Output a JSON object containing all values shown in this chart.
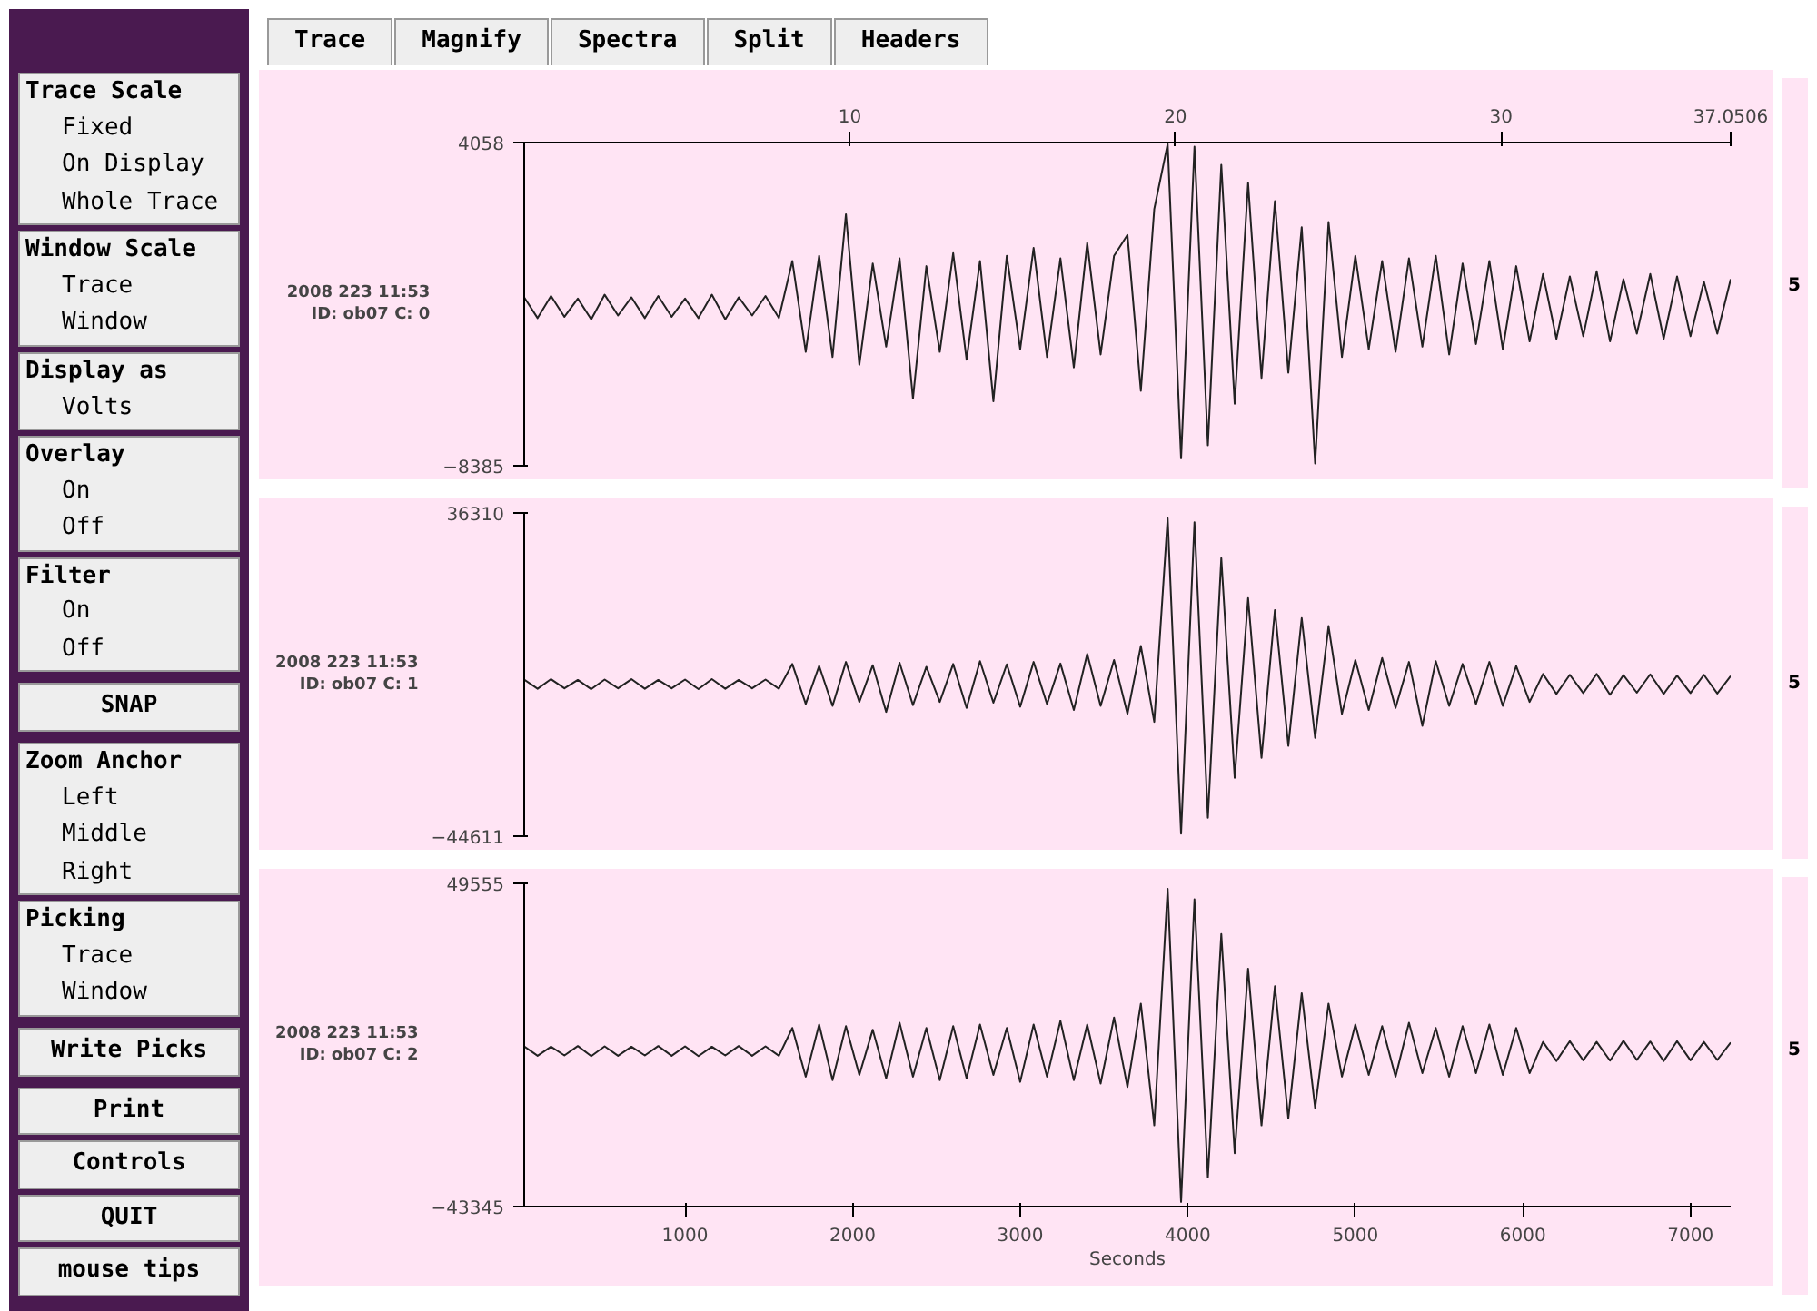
{
  "chart_data": [
    {
      "type": "other",
      "categories": [
        "Trace",
        "Magnify",
        "Spectra",
        "Split",
        "Headers"
      ]
    },
    {
      "type": "other",
      "title": "Trace Scale",
      "annotations": [
        "Fixed",
        "On Display",
        "Whole Trace"
      ]
    },
    {
      "type": "other",
      "title": "Window Scale",
      "annotations": [
        "Trace",
        "Window"
      ]
    },
    {
      "type": "other",
      "title": "Display as",
      "annotations": [
        "Volts"
      ]
    },
    {
      "type": "other",
      "title": "Overlay",
      "annotations": [
        "On",
        "Off"
      ]
    },
    {
      "type": "other",
      "title": "Filter",
      "annotations": [
        "On",
        "Off"
      ]
    },
    {
      "type": "other",
      "annotations": [
        "SNAP"
      ]
    },
    {
      "type": "other",
      "title": "Zoom Anchor",
      "annotations": [
        "Left",
        "Middle",
        "Right"
      ]
    },
    {
      "type": "other",
      "title": "Picking",
      "annotations": [
        "Trace",
        "Window"
      ]
    },
    {
      "type": "other",
      "annotations": [
        "Write Picks"
      ]
    },
    {
      "type": "other",
      "annotations": [
        "Print",
        "Controls",
        "QUIT",
        "mouse tips"
      ]
    },
    {
      "type": "line",
      "ylabel": "2008 223 11:53\nID: ob07 C: 0",
      "annotations": [
        "5"
      ],
      "xlim": [
        40,
        7240
      ],
      "ylim": [
        -8385,
        4058
      ],
      "yticks": [
        -8385,
        4058
      ],
      "x2lim": [
        0,
        37.0506
      ],
      "x2ticks": [
        10,
        20,
        30,
        {
          "value": 37.0506,
          "label": "37.0506"
        }
      ],
      "tick_labels": "y",
      "x": [
        40,
        120,
        200,
        280,
        360,
        440,
        520,
        600,
        680,
        760,
        840,
        920,
        1000,
        1080,
        1160,
        1240,
        1320,
        1400,
        1480,
        1560,
        1640,
        1720,
        1800,
        1880,
        1960,
        2040,
        2120,
        2200,
        2280,
        2360,
        2440,
        2520,
        2600,
        2680,
        2760,
        2840,
        2920,
        3000,
        3080,
        3160,
        3240,
        3320,
        3400,
        3480,
        3560,
        3640,
        3720,
        3800,
        3880,
        3960,
        4040,
        4120,
        4200,
        4280,
        4360,
        4440,
        4520,
        4600,
        4680,
        4760,
        4840,
        4920,
        5000,
        5080,
        5160,
        5240,
        5320,
        5400,
        5480,
        5560,
        5640,
        5720,
        5800,
        5880,
        5960,
        6040,
        6120,
        6200,
        6280,
        6360,
        6440,
        6520,
        6600,
        6680,
        6760,
        6840,
        6920,
        7000,
        7080,
        7160,
        7240
      ],
      "series": [
        {
          "color": "#222222",
          "values": [
            -1900,
            -2700,
            -1850,
            -2650,
            -1950,
            -2750,
            -1800,
            -2600,
            -1900,
            -2700,
            -1850,
            -2650,
            -1950,
            -2700,
            -1800,
            -2750,
            -1900,
            -2600,
            -1850,
            -2700,
            -500,
            -4000,
            -300,
            -4200,
            1300,
            -4500,
            -600,
            -3800,
            -400,
            -5800,
            -700,
            -4000,
            -200,
            -4300,
            -500,
            -5900,
            -300,
            -3900,
            0,
            -4200,
            -400,
            -4600,
            200,
            -4100,
            -300,
            500,
            -5500,
            1500,
            4000,
            -8100,
            3900,
            -7600,
            3200,
            -6000,
            2500,
            -5000,
            1800,
            -4800,
            800,
            -8300,
            1000,
            -4200,
            -300,
            -3900,
            -500,
            -4000,
            -400,
            -3800,
            -300,
            -4100,
            -600,
            -3700,
            -500,
            -3900,
            -700,
            -3600,
            -1000,
            -3500,
            -1100,
            -3400,
            -900,
            -3600,
            -1200,
            -3300,
            -1000,
            -3500,
            -1100,
            -3400,
            -1300,
            -3300,
            -1200
          ]
        }
      ]
    },
    {
      "type": "line",
      "ylabel": "2008 223 11:53\nID: ob07 C: 1",
      "annotations": [
        "5"
      ],
      "xlim": [
        40,
        7240
      ],
      "ylim": [
        -44611,
        36310
      ],
      "yticks": [
        -44611,
        36310
      ],
      "tick_labels": "y",
      "x": [
        40,
        120,
        200,
        280,
        360,
        440,
        520,
        600,
        680,
        760,
        840,
        920,
        1000,
        1080,
        1160,
        1240,
        1320,
        1400,
        1480,
        1560,
        1640,
        1720,
        1800,
        1880,
        1960,
        2040,
        2120,
        2200,
        2280,
        2360,
        2440,
        2520,
        2600,
        2680,
        2760,
        2840,
        2920,
        3000,
        3080,
        3160,
        3240,
        3320,
        3400,
        3480,
        3560,
        3640,
        3720,
        3800,
        3880,
        3960,
        4040,
        4120,
        4200,
        4280,
        4360,
        4440,
        4520,
        4600,
        4680,
        4760,
        4840,
        4920,
        5000,
        5080,
        5160,
        5240,
        5320,
        5400,
        5480,
        5560,
        5640,
        5720,
        5800,
        5880,
        5960,
        6040,
        6120,
        6200,
        6280,
        6360,
        6440,
        6520,
        6600,
        6680,
        6760,
        6840,
        6920,
        7000,
        7080,
        7160,
        7240
      ],
      "series": [
        {
          "color": "#222222",
          "values": [
            -5400,
            -7700,
            -5300,
            -7600,
            -5500,
            -7800,
            -5400,
            -7600,
            -5300,
            -7700,
            -5500,
            -7600,
            -5400,
            -7800,
            -5300,
            -7700,
            -5500,
            -7600,
            -5400,
            -7700,
            -1500,
            -11500,
            -2000,
            -12000,
            -1000,
            -11000,
            -1800,
            -13500,
            -1200,
            -11800,
            -2200,
            -11000,
            -1500,
            -12500,
            -800,
            -11200,
            -1600,
            -12200,
            -1000,
            -11500,
            -1400,
            -13000,
            1000,
            -12000,
            -500,
            -14000,
            3000,
            -16000,
            35000,
            -44000,
            34000,
            -40000,
            25000,
            -30000,
            15000,
            -25000,
            12000,
            -22000,
            10000,
            -20000,
            8000,
            -14000,
            -500,
            -13000,
            0,
            -12500,
            -1000,
            -17000,
            -800,
            -12000,
            -1500,
            -11500,
            -1000,
            -12000,
            -2000,
            -11000,
            -4000,
            -9000,
            -4200,
            -8800,
            -4000,
            -9200,
            -4300,
            -8700,
            -4100,
            -9000,
            -4400,
            -8800,
            -4200,
            -8900,
            -4500
          ]
        }
      ]
    },
    {
      "type": "line",
      "ylabel": "2008 223 11:53\nID: ob07 C: 2",
      "xlabel": "Seconds",
      "annotations": [
        "5"
      ],
      "xlim": [
        40,
        7240
      ],
      "xticks": [
        1000,
        2000,
        3000,
        4000,
        5000,
        6000,
        7000
      ],
      "ylim": [
        -43345,
        49555
      ],
      "yticks": [
        -43345,
        49555
      ],
      "x": [
        40,
        120,
        200,
        280,
        360,
        440,
        520,
        600,
        680,
        760,
        840,
        920,
        1000,
        1080,
        1160,
        1240,
        1320,
        1400,
        1480,
        1560,
        1640,
        1720,
        1800,
        1880,
        1960,
        2040,
        2120,
        2200,
        2280,
        2360,
        2440,
        2520,
        2600,
        2680,
        2760,
        2840,
        2920,
        3000,
        3080,
        3160,
        3240,
        3320,
        3400,
        3480,
        3560,
        3640,
        3720,
        3800,
        3880,
        3960,
        4040,
        4120,
        4200,
        4280,
        4360,
        4440,
        4520,
        4600,
        4680,
        4760,
        4840,
        4920,
        5000,
        5080,
        5160,
        5240,
        5320,
        5400,
        5480,
        5560,
        5640,
        5720,
        5800,
        5880,
        5960,
        6040,
        6120,
        6200,
        6280,
        6360,
        6440,
        6520,
        6600,
        6680,
        6760,
        6840,
        6920,
        7000,
        7080,
        7160,
        7240
      ],
      "series": [
        {
          "color": "#222222",
          "values": [
            2700,
            0,
            2600,
            100,
            2800,
            -100,
            2700,
            0,
            2600,
            100,
            2800,
            0,
            2700,
            -100,
            2600,
            100,
            2800,
            0,
            2700,
            0,
            8000,
            -6000,
            9000,
            -7000,
            8500,
            -5500,
            7500,
            -6500,
            9500,
            -6000,
            8000,
            -7000,
            8500,
            -6500,
            9000,
            -5500,
            8000,
            -7500,
            9000,
            -6000,
            10000,
            -7000,
            9000,
            -8000,
            11000,
            -9000,
            15000,
            -20000,
            48000,
            -42000,
            45000,
            -35000,
            35000,
            -28000,
            25000,
            -20000,
            20000,
            -18000,
            18000,
            -15000,
            15000,
            -6000,
            9000,
            -5500,
            8500,
            -6000,
            9500,
            -5000,
            8000,
            -6000,
            8500,
            -5000,
            9000,
            -5500,
            8000,
            -5000,
            4000,
            -1500,
            4200,
            -1300,
            4000,
            -1400,
            4300,
            -1200,
            4100,
            -1500,
            4200,
            -1300,
            4000,
            -1200,
            3800
          ]
        }
      ]
    }
  ]
}
